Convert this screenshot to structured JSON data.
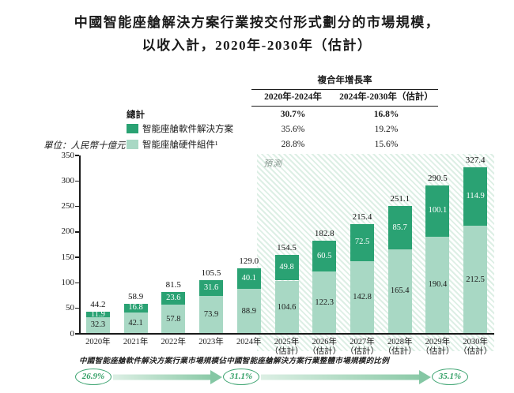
{
  "title": {
    "line1": "中國智能座艙解決方案行業按交付形式劃分的市場規模，",
    "line2": "以收入計，2020年-2030年（估計）"
  },
  "unit_label": "單位：人民幣十億元",
  "legend": {
    "total_label": "總計",
    "items": [
      {
        "key": "software",
        "label": "智能座艙軟件解決方案",
        "color": "#2AA273"
      },
      {
        "key": "hardware",
        "label": "智能座艙硬件組件¹",
        "color": "#A8D8C4"
      }
    ]
  },
  "cagr_table": {
    "header": "複合年增長率",
    "columns": [
      "2020年-2024年",
      "2024年-2030年（估計）"
    ],
    "rows": [
      {
        "label": "總計",
        "values": [
          "30.7%",
          "16.8%"
        ]
      },
      {
        "label": "智能座艙軟件解決方案",
        "values": [
          "35.6%",
          "19.2%"
        ]
      },
      {
        "label": "智能座艙硬件組件¹",
        "values": [
          "28.8%",
          "15.6%"
        ]
      }
    ]
  },
  "chart_data": {
    "type": "bar",
    "stacked": true,
    "title": "中國智能座艙解決方案行業按交付形式劃分的市場規模，以收入計，2020年-2030年（估計）",
    "ylabel": "人民幣十億元",
    "ylim": [
      0,
      350
    ],
    "yticks": [
      0,
      50,
      100,
      150,
      200,
      250,
      300,
      350
    ],
    "grid": false,
    "categories": [
      "2020年",
      "2021年",
      "2022年",
      "2023年",
      "2024年",
      "2025年",
      "2026年",
      "2027年",
      "2028年",
      "2029年",
      "2030年"
    ],
    "estimate_suffix": "（估計）",
    "forecast_from_index": 5,
    "forecast_label": "預測",
    "series": [
      {
        "key": "software",
        "name": "智能座艙軟件解決方案",
        "color": "#2AA273",
        "label_color": "#ffffff",
        "values": [
          11.9,
          16.8,
          23.6,
          31.6,
          40.1,
          49.8,
          60.5,
          72.5,
          85.7,
          100.1,
          114.9
        ]
      },
      {
        "key": "hardware",
        "name": "智能座艙硬件組件¹",
        "color": "#A8D8C4",
        "label_color": "#1c1c1c",
        "values": [
          32.3,
          42.1,
          57.8,
          73.9,
          88.9,
          104.6,
          122.3,
          142.8,
          165.4,
          190.4,
          212.5
        ]
      }
    ],
    "totals": [
      44.2,
      58.9,
      81.5,
      105.5,
      129.0,
      154.5,
      182.8,
      215.4,
      251.1,
      290.5,
      327.4
    ]
  },
  "footnote": "中國智能座艙軟件解決方案行業市場規模佔中國智能座艙解決方案行業整體市場規模的比例",
  "ratio_flow": {
    "values": [
      "26.9%",
      "31.1%",
      "35.1%"
    ]
  },
  "colors": {
    "software": "#2AA273",
    "hardware": "#A8D8C4",
    "oval_green": "#2F9E63",
    "hatch": "#DDEFE5"
  }
}
